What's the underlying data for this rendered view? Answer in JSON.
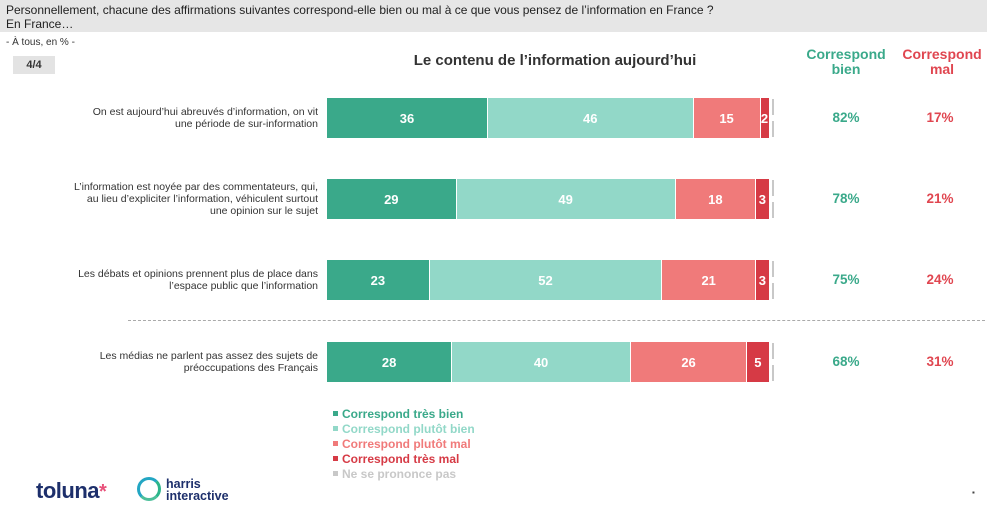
{
  "header": {
    "question_line1": "Personnellement, chacune des affirmations suivantes correspond-elle bien ou mal à ce que vous pensez de l’information en France ?",
    "question_line2": "En France…",
    "base": "- À tous, en % -",
    "page": "4/4"
  },
  "columns": {
    "good_line1": "Correspond",
    "good_line2": "bien",
    "bad_line1": "Correspond",
    "bad_line2": "mal"
  },
  "colors": {
    "tres_bien": "#3aa98a",
    "plutot_bien": "#92d8c8",
    "plutot_mal": "#f07a7a",
    "tres_mal": "#d63a45",
    "nsp": "#c8c8c8"
  },
  "chart_data": {
    "type": "bar",
    "orientation": "horizontal",
    "stacked": true,
    "title": "Le contenu de l’information aujourd’hui",
    "xlim": [
      0,
      100
    ],
    "categories": [
      [
        "On est aujourd’hui abreuvés d’information, on vit",
        "une période de sur-information"
      ],
      [
        "L’information est noyée par des commentateurs, qui,",
        "au lieu d’expliciter l’information, véhiculent surtout",
        "une opinion sur le sujet"
      ],
      [
        "Les débats et opinions prennent plus de place dans",
        "l’espace public que l’information"
      ],
      [
        "Les médias ne parlent pas assez des sujets de",
        "préoccupations des Français"
      ]
    ],
    "series": [
      {
        "name": "Correspond très bien",
        "values": [
          36,
          29,
          23,
          28
        ]
      },
      {
        "name": "Correspond plutôt bien",
        "values": [
          46,
          49,
          52,
          40
        ]
      },
      {
        "name": "Correspond plutôt mal",
        "values": [
          15,
          18,
          21,
          26
        ]
      },
      {
        "name": "Correspond très mal",
        "values": [
          2,
          3,
          3,
          5
        ]
      },
      {
        "name": "Ne se prononce pas",
        "values": [
          1,
          1,
          1,
          1
        ]
      }
    ],
    "summary_bien": [
      "82%",
      "78%",
      "75%",
      "68%"
    ],
    "summary_mal": [
      "17%",
      "21%",
      "24%",
      "31%"
    ],
    "legend_position": "bottom"
  }
}
